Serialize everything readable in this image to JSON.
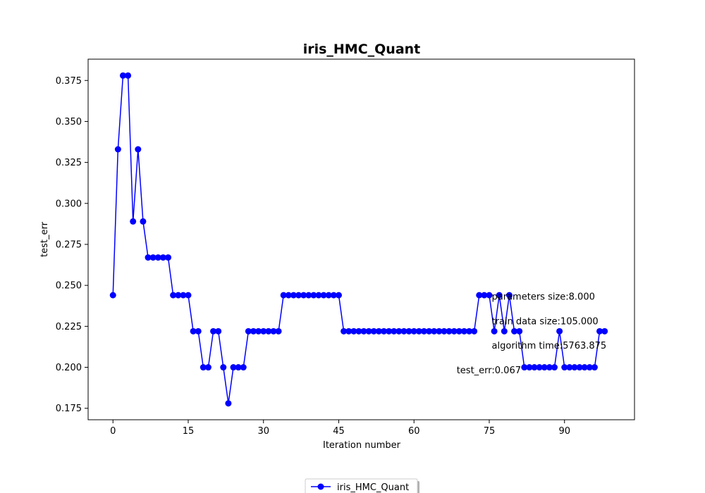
{
  "chart_data": {
    "type": "line",
    "title": "iris_HMC_Quant",
    "xlabel": "Iteration number",
    "ylabel": "test_err",
    "xlim": [
      -4.95,
      103.95
    ],
    "ylim": [
      0.168,
      0.388
    ],
    "xticks": [
      "0",
      "15",
      "30",
      "45",
      "60",
      "75",
      "90"
    ],
    "yticks": [
      "0.175",
      "0.200",
      "0.225",
      "0.250",
      "0.275",
      "0.300",
      "0.325",
      "0.350",
      "0.375"
    ],
    "grid": false,
    "legend_position": "bottom-center",
    "series": [
      {
        "name": "iris_HMC_Quant",
        "color": "#0000ff",
        "marker": "circle",
        "values": [
          0.244,
          0.333,
          0.378,
          0.378,
          0.289,
          0.333,
          0.289,
          0.267,
          0.267,
          0.267,
          0.267,
          0.267,
          0.244,
          0.244,
          0.244,
          0.244,
          0.222,
          0.222,
          0.2,
          0.2,
          0.222,
          0.222,
          0.2,
          0.178,
          0.2,
          0.2,
          0.2,
          0.222,
          0.222,
          0.222,
          0.222,
          0.222,
          0.222,
          0.222,
          0.244,
          0.244,
          0.244,
          0.244,
          0.244,
          0.244,
          0.244,
          0.244,
          0.244,
          0.244,
          0.244,
          0.244,
          0.222,
          0.222,
          0.222,
          0.222,
          0.222,
          0.222,
          0.222,
          0.222,
          0.222,
          0.222,
          0.222,
          0.222,
          0.222,
          0.222,
          0.222,
          0.222,
          0.222,
          0.222,
          0.222,
          0.222,
          0.222,
          0.222,
          0.222,
          0.222,
          0.222,
          0.222,
          0.222,
          0.244,
          0.244,
          0.244,
          0.222,
          0.244,
          0.222,
          0.244,
          0.222,
          0.222,
          0.2,
          0.2,
          0.2,
          0.2,
          0.2,
          0.2,
          0.2,
          0.222,
          0.2,
          0.2,
          0.2,
          0.2,
          0.2,
          0.2,
          0.2,
          0.222,
          0.222
        ]
      }
    ],
    "annotations": [
      {
        "text": "parameters size:8.000",
        "x": 75.5,
        "y": 0.2413
      },
      {
        "text": "train data size:105.000",
        "x": 75.5,
        "y": 0.2263
      },
      {
        "text": "algorithm time:5763.875",
        "x": 75.5,
        "y": 0.2113
      },
      {
        "text": "test_err:0.067",
        "x": 68.5,
        "y": 0.1963
      }
    ]
  }
}
